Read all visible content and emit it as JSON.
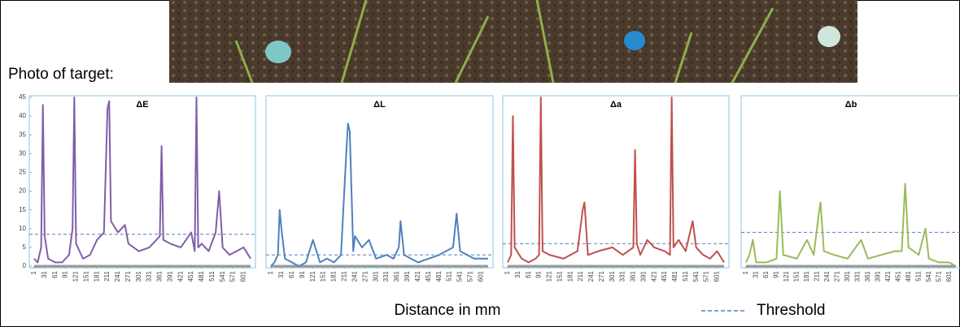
{
  "photo_label": "Photo of target:",
  "x_label": "Distance in mm",
  "threshold_label": "Threshold",
  "chart_data": [
    {
      "type": "line",
      "title": "ΔE",
      "color": "#7f5fa8",
      "threshold": 8.5,
      "threshold_color": "#4f81bd",
      "x": [
        1,
        11,
        21,
        26,
        31,
        41,
        61,
        81,
        101,
        111,
        116,
        121,
        141,
        161,
        181,
        201,
        211,
        216,
        221,
        241,
        261,
        271,
        301,
        331,
        361,
        366,
        371,
        391,
        421,
        451,
        461,
        466,
        471,
        481,
        501,
        521,
        531,
        541,
        561,
        581,
        601,
        621
      ],
      "values": [
        2,
        1,
        5,
        43,
        8,
        2,
        1,
        1,
        3,
        10,
        45,
        6,
        2,
        3,
        7,
        9,
        42,
        44,
        12,
        9,
        11,
        6,
        4,
        5,
        8,
        32,
        7,
        6,
        5,
        9,
        4,
        45,
        5,
        6,
        4,
        9,
        20,
        5,
        3,
        4,
        5,
        2
      ],
      "xlim": [
        1,
        621
      ],
      "xticks": [
        1,
        31,
        61,
        91,
        121,
        151,
        181,
        211,
        241,
        271,
        301,
        331,
        361,
        391,
        421,
        451,
        481,
        511,
        541,
        571,
        601
      ],
      "ylim": [
        0,
        45
      ],
      "yticks": [
        0,
        5,
        10,
        15,
        20,
        25,
        30,
        35,
        40,
        45
      ]
    },
    {
      "type": "line",
      "title": "ΔL",
      "color": "#4f81bd",
      "threshold": 3,
      "threshold_color": "#4f81bd",
      "x": [
        1,
        11,
        21,
        26,
        31,
        41,
        61,
        81,
        101,
        121,
        141,
        161,
        181,
        201,
        216,
        221,
        226,
        236,
        241,
        261,
        281,
        301,
        331,
        351,
        366,
        371,
        381,
        401,
        421,
        451,
        481,
        501,
        521,
        531,
        541,
        561,
        581,
        601,
        621
      ],
      "values": [
        0,
        1,
        3,
        15,
        10,
        2,
        1,
        0,
        1,
        7,
        1,
        2,
        1,
        3,
        30,
        38,
        36,
        4,
        8,
        5,
        7,
        2,
        3,
        2,
        5,
        12,
        3,
        2,
        1,
        2,
        3,
        4,
        5,
        14,
        4,
        3,
        2,
        2,
        2
      ],
      "xlim": [
        1,
        621
      ],
      "xticks": [
        1,
        31,
        61,
        91,
        121,
        151,
        181,
        211,
        241,
        271,
        301,
        331,
        361,
        391,
        421,
        451,
        481,
        511,
        541,
        571,
        601
      ],
      "ylim": [
        0,
        45
      ]
    },
    {
      "type": "line",
      "title": "Δa",
      "color": "#c0504d",
      "threshold": 6,
      "threshold_color": "#4f81bd",
      "x": [
        1,
        11,
        16,
        21,
        41,
        61,
        81,
        91,
        96,
        101,
        121,
        161,
        201,
        216,
        221,
        231,
        261,
        301,
        331,
        361,
        366,
        371,
        381,
        401,
        421,
        451,
        466,
        471,
        476,
        491,
        511,
        531,
        541,
        561,
        581,
        601,
        621
      ],
      "values": [
        1,
        3,
        40,
        5,
        2,
        1,
        2,
        3,
        45,
        4,
        3,
        2,
        4,
        15,
        17,
        3,
        4,
        5,
        3,
        5,
        31,
        6,
        3,
        7,
        5,
        4,
        3,
        45,
        5,
        7,
        4,
        12,
        5,
        3,
        2,
        4,
        1
      ],
      "xlim": [
        1,
        621
      ],
      "xticks": [
        1,
        31,
        61,
        91,
        121,
        151,
        181,
        211,
        241,
        271,
        301,
        331,
        361,
        391,
        421,
        451,
        481,
        511,
        541,
        571,
        601
      ],
      "ylim": [
        0,
        45
      ]
    },
    {
      "type": "line",
      "title": "Δb",
      "color": "#9bbb59",
      "threshold": 9,
      "threshold_color": "#4f81bd",
      "x": [
        1,
        11,
        21,
        31,
        61,
        91,
        101,
        111,
        151,
        181,
        201,
        216,
        221,
        231,
        261,
        301,
        341,
        361,
        401,
        441,
        461,
        471,
        481,
        511,
        531,
        541,
        571,
        601,
        621
      ],
      "values": [
        1,
        3,
        7,
        1,
        1,
        2,
        20,
        3,
        2,
        7,
        3,
        14,
        17,
        4,
        3,
        2,
        7,
        2,
        3,
        4,
        4,
        22,
        5,
        3,
        10,
        2,
        1,
        1,
        0
      ],
      "xlim": [
        1,
        621
      ],
      "xticks": [
        1,
        31,
        61,
        91,
        121,
        151,
        181,
        211,
        241,
        271,
        301,
        331,
        361,
        391,
        421,
        451,
        481,
        511,
        541,
        571,
        601
      ],
      "ylim": [
        0,
        45
      ]
    }
  ]
}
